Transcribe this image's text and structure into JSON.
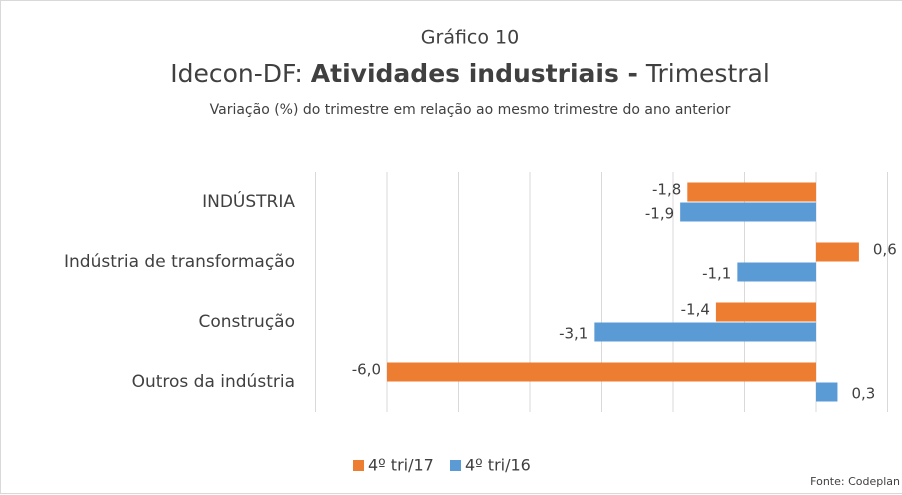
{
  "chart_data": {
    "type": "barh",
    "title_top": "Gráfico 10",
    "title": [
      "Idecon-DF: ",
      "Atividades industriais -",
      " Trimestral"
    ],
    "subtitle": "Variação (%) do trimestre em relação ao mesmo trimestre do ano anterior",
    "source": "Fonte: Codeplan",
    "categories": [
      "INDÚSTRIA",
      "Indústria de transformação",
      "Construção",
      "Outros da indústria"
    ],
    "series": [
      {
        "name": "4º tri/17",
        "color": "#ed7d31",
        "values": [
          -1.8,
          0.6,
          -1.4,
          -6.0
        ],
        "value_labels": [
          "-1,8",
          "0,6",
          "-1,4",
          "-6,0"
        ]
      },
      {
        "name": "4º tri/16",
        "color": "#5b9bd5",
        "values": [
          -1.9,
          -1.1,
          -3.1,
          0.3
        ],
        "value_labels": [
          "-1,9",
          "-1,1",
          "-3,1",
          "0,3"
        ]
      }
    ],
    "xlim": [
      -7,
      1
    ],
    "xticks": [
      -7,
      -6,
      -5,
      -4,
      -3,
      -2,
      -1,
      0,
      1
    ],
    "grid": true,
    "legend": "bottom"
  }
}
